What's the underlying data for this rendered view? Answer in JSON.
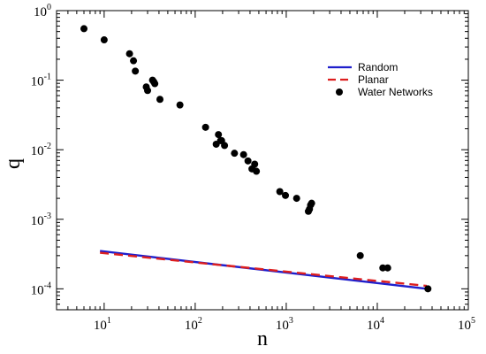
{
  "chart_data": {
    "type": "scatter",
    "title": "",
    "xlabel": "n",
    "ylabel": "q",
    "xscale": "log",
    "yscale": "log",
    "xlim": [
      3,
      100000
    ],
    "ylim": [
      5e-05,
      1
    ],
    "x_ticks": [
      {
        "value": 10,
        "base": "10",
        "exp": "1"
      },
      {
        "value": 100,
        "base": "10",
        "exp": "2"
      },
      {
        "value": 1000,
        "base": "10",
        "exp": "3"
      },
      {
        "value": 10000,
        "base": "10",
        "exp": "4"
      },
      {
        "value": 100000,
        "base": "10",
        "exp": "5"
      }
    ],
    "y_ticks": [
      {
        "value": 0.0001,
        "base": "10",
        "exp": "-4"
      },
      {
        "value": 0.001,
        "base": "10",
        "exp": "-3"
      },
      {
        "value": 0.01,
        "base": "10",
        "exp": "-2"
      },
      {
        "value": 0.1,
        "base": "10",
        "exp": "-1"
      },
      {
        "value": 1,
        "base": "10",
        "exp": "0"
      }
    ],
    "grid": false,
    "legend_position": "top-right",
    "series": [
      {
        "name": "Random",
        "type": "line",
        "color": "#1f1fcc",
        "style": "solid",
        "x": [
          9,
          35000
        ],
        "y": [
          0.00035,
          0.0001
        ]
      },
      {
        "name": "Planar",
        "type": "line",
        "color": "#dd1f1f",
        "style": "dashed",
        "x": [
          9,
          35000
        ],
        "y": [
          0.00033,
          0.00011
        ]
      },
      {
        "name": "Water Networks",
        "type": "scatter",
        "color": "#000000",
        "x": [
          6,
          10,
          19,
          21,
          22,
          29,
          30,
          34,
          35,
          36,
          41,
          68,
          130,
          170,
          180,
          190,
          195,
          210,
          270,
          340,
          380,
          420,
          450,
          470,
          850,
          980,
          1300,
          1750,
          1800,
          1850,
          1900,
          6500,
          11500,
          13000,
          36000
        ],
        "y": [
          0.55,
          0.38,
          0.24,
          0.19,
          0.135,
          0.08,
          0.071,
          0.1,
          0.095,
          0.089,
          0.053,
          0.044,
          0.021,
          0.012,
          0.0165,
          0.0135,
          0.0135,
          0.0115,
          0.0089,
          0.0085,
          0.0069,
          0.0053,
          0.0062,
          0.0049,
          0.0025,
          0.0022,
          0.002,
          0.0013,
          0.0014,
          0.0016,
          0.0017,
          0.0003,
          0.0002,
          0.0002,
          0.0001
        ]
      }
    ]
  }
}
